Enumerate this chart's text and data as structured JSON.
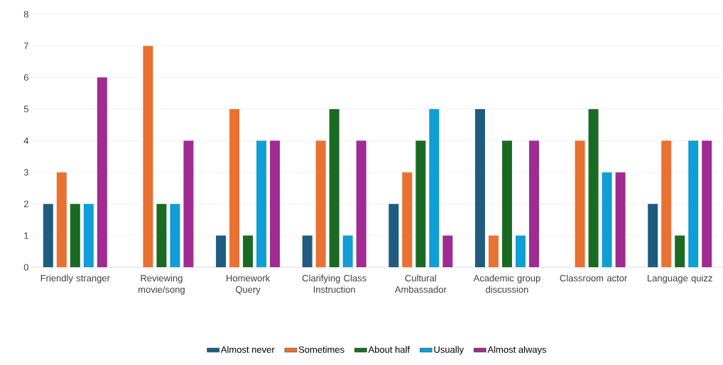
{
  "chart_data": {
    "type": "bar",
    "categories": [
      "Friendly stranger",
      "Reviewing movie/song",
      "Homework Query",
      "Clarifying Class Instruction",
      "Cultural Ambassador",
      "Academic group discussion",
      "Classroom actor",
      "Language quizz"
    ],
    "series": [
      {
        "name": "Almost never",
        "color": "#1f5c80",
        "values": [
          2,
          0,
          1,
          1,
          2,
          5,
          0,
          2
        ]
      },
      {
        "name": "Sometimes",
        "color": "#e97132",
        "values": [
          3,
          7,
          5,
          4,
          3,
          1,
          4,
          4
        ]
      },
      {
        "name": "About half",
        "color": "#196b24",
        "values": [
          2,
          2,
          1,
          5,
          4,
          4,
          5,
          1
        ]
      },
      {
        "name": "Usually",
        "color": "#0f9ed5",
        "values": [
          2,
          2,
          4,
          1,
          5,
          1,
          3,
          4
        ]
      },
      {
        "name": "Almost always",
        "color": "#a02b93",
        "values": [
          6,
          4,
          4,
          4,
          1,
          4,
          3,
          4
        ]
      }
    ],
    "ylim": [
      0,
      8
    ],
    "yticks": [
      0,
      1,
      2,
      3,
      4,
      5,
      6,
      7,
      8
    ],
    "grid": "y",
    "legend": "bottom"
  }
}
